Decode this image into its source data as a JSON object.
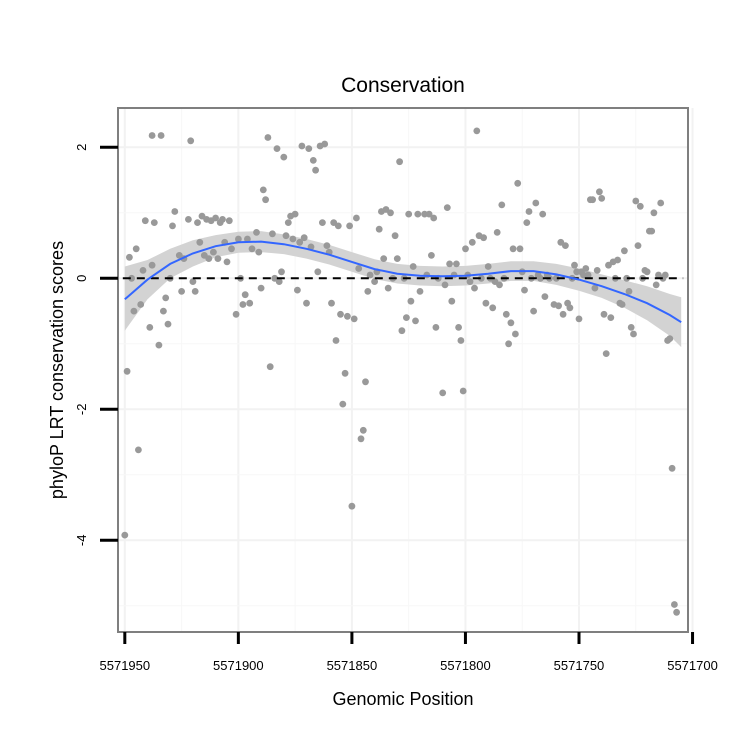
{
  "chart_data": {
    "type": "scatter",
    "title": "Conservation",
    "xlabel": "Genomic Position",
    "ylabel": "phyloP LRT conservation scores",
    "x_reversed": true,
    "xlim": [
      5571702,
      5571953
    ],
    "ylim": [
      -5.4,
      2.6
    ],
    "x_ticks": [
      5571950,
      5571900,
      5571850,
      5571800,
      5571750,
      5571700
    ],
    "x_tick_labels": [
      "5571950",
      "5571900",
      "5571850",
      "5571800",
      "5571750",
      "5571700"
    ],
    "y_ticks": [
      2,
      0,
      -2,
      -4
    ],
    "y_tick_labels": [
      "2",
      "0",
      "-2",
      "-4"
    ],
    "reference_line": {
      "y": 0,
      "style": "dashed"
    },
    "point_color": "#999999",
    "smooth_color": "#3366ff",
    "band_color": "#d3d3d3",
    "points": [
      [
        5571950,
        -3.92
      ],
      [
        5571949,
        -1.42
      ],
      [
        5571948,
        0.32
      ],
      [
        5571947,
        0.0
      ],
      [
        5571946,
        -0.5
      ],
      [
        5571945,
        0.45
      ],
      [
        5571944,
        -2.62
      ],
      [
        5571943,
        -0.4
      ],
      [
        5571942,
        0.12
      ],
      [
        5571941,
        0.88
      ],
      [
        5571939,
        -0.75
      ],
      [
        5571938,
        2.18
      ],
      [
        5571938,
        0.2
      ],
      [
        5571937,
        0.85
      ],
      [
        5571935,
        -1.02
      ],
      [
        5571934,
        2.18
      ],
      [
        5571933,
        -0.5
      ],
      [
        5571932,
        -0.3
      ],
      [
        5571931,
        -0.7
      ],
      [
        5571930,
        0.0
      ],
      [
        5571929,
        0.8
      ],
      [
        5571928,
        1.02
      ],
      [
        5571926,
        0.35
      ],
      [
        5571925,
        -0.2
      ],
      [
        5571924,
        0.3
      ],
      [
        5571922,
        0.9
      ],
      [
        5571921,
        2.1
      ],
      [
        5571920,
        -0.05
      ],
      [
        5571919,
        -0.2
      ],
      [
        5571918,
        0.85
      ],
      [
        5571917,
        0.55
      ],
      [
        5571916,
        0.95
      ],
      [
        5571915,
        0.35
      ],
      [
        5571914,
        0.9
      ],
      [
        5571913,
        0.3
      ],
      [
        5571912,
        0.88
      ],
      [
        5571911,
        0.4
      ],
      [
        5571910,
        0.92
      ],
      [
        5571909,
        0.3
      ],
      [
        5571908,
        0.85
      ],
      [
        5571907,
        0.9
      ],
      [
        5571906,
        0.55
      ],
      [
        5571905,
        0.25
      ],
      [
        5571904,
        0.88
      ],
      [
        5571903,
        0.45
      ],
      [
        5571901,
        -0.55
      ],
      [
        5571900,
        0.6
      ],
      [
        5571899,
        0.0
      ],
      [
        5571898,
        -0.4
      ],
      [
        5571897,
        -0.25
      ],
      [
        5571896,
        0.6
      ],
      [
        5571895,
        -0.38
      ],
      [
        5571894,
        0.45
      ],
      [
        5571892,
        0.7
      ],
      [
        5571891,
        0.4
      ],
      [
        5571890,
        -0.15
      ],
      [
        5571889,
        1.35
      ],
      [
        5571888,
        1.2
      ],
      [
        5571887,
        2.15
      ],
      [
        5571886,
        -1.35
      ],
      [
        5571885,
        0.68
      ],
      [
        5571884,
        0.0
      ],
      [
        5571883,
        1.98
      ],
      [
        5571882,
        -0.05
      ],
      [
        5571881,
        0.1
      ],
      [
        5571880,
        1.85
      ],
      [
        5571879,
        0.65
      ],
      [
        5571878,
        0.85
      ],
      [
        5571877,
        0.95
      ],
      [
        5571876,
        0.6
      ],
      [
        5571875,
        0.98
      ],
      [
        5571874,
        -0.18
      ],
      [
        5571873,
        0.55
      ],
      [
        5571872,
        2.02
      ],
      [
        5571871,
        0.62
      ],
      [
        5571870,
        -0.38
      ],
      [
        5571869,
        1.98
      ],
      [
        5571868,
        0.48
      ],
      [
        5571867,
        1.8
      ],
      [
        5571866,
        1.65
      ],
      [
        5571865,
        0.1
      ],
      [
        5571864,
        2.02
      ],
      [
        5571863,
        0.85
      ],
      [
        5571862,
        2.05
      ],
      [
        5571861,
        0.5
      ],
      [
        5571860,
        0.4
      ],
      [
        5571859,
        -0.38
      ],
      [
        5571858,
        0.85
      ],
      [
        5571857,
        -0.95
      ],
      [
        5571856,
        0.8
      ],
      [
        5571855,
        -0.55
      ],
      [
        5571854,
        -1.92
      ],
      [
        5571853,
        -1.45
      ],
      [
        5571852,
        -0.58
      ],
      [
        5571851,
        0.8
      ],
      [
        5571850,
        -3.48
      ],
      [
        5571849,
        -0.62
      ],
      [
        5571848,
        0.92
      ],
      [
        5571847,
        0.15
      ],
      [
        5571846,
        -2.45
      ],
      [
        5571845,
        -2.32
      ],
      [
        5571844,
        -1.58
      ],
      [
        5571843,
        -0.2
      ],
      [
        5571842,
        0.05
      ],
      [
        5571840,
        -0.05
      ],
      [
        5571839,
        0.1
      ],
      [
        5571838,
        0.75
      ],
      [
        5571837,
        1.02
      ],
      [
        5571836,
        0.3
      ],
      [
        5571835,
        1.05
      ],
      [
        5571834,
        -0.15
      ],
      [
        5571833,
        1.0
      ],
      [
        5571832,
        0.0
      ],
      [
        5571831,
        0.65
      ],
      [
        5571830,
        0.3
      ],
      [
        5571829,
        1.78
      ],
      [
        5571828,
        -0.8
      ],
      [
        5571827,
        0.0
      ],
      [
        5571826,
        -0.6
      ],
      [
        5571825,
        0.98
      ],
      [
        5571824,
        -0.35
      ],
      [
        5571823,
        0.18
      ],
      [
        5571822,
        -0.65
      ],
      [
        5571821,
        0.98
      ],
      [
        5571820,
        -0.2
      ],
      [
        5571818,
        0.98
      ],
      [
        5571817,
        0.05
      ],
      [
        5571816,
        0.98
      ],
      [
        5571815,
        0.35
      ],
      [
        5571814,
        0.92
      ],
      [
        5571813,
        -0.75
      ],
      [
        5571812,
        0.0
      ],
      [
        5571810,
        -1.75
      ],
      [
        5571809,
        -0.1
      ],
      [
        5571808,
        1.08
      ],
      [
        5571807,
        0.22
      ],
      [
        5571806,
        -0.35
      ],
      [
        5571805,
        0.05
      ],
      [
        5571804,
        0.22
      ],
      [
        5571803,
        -0.75
      ],
      [
        5571802,
        -0.95
      ],
      [
        5571801,
        -1.72
      ],
      [
        5571800,
        0.45
      ],
      [
        5571799,
        0.05
      ],
      [
        5571798,
        -0.05
      ],
      [
        5571797,
        0.55
      ],
      [
        5571796,
        -0.15
      ],
      [
        5571795,
        2.25
      ],
      [
        5571794,
        0.65
      ],
      [
        5571793,
        0.0
      ],
      [
        5571792,
        0.62
      ],
      [
        5571791,
        -0.38
      ],
      [
        5571790,
        0.18
      ],
      [
        5571789,
        0.0
      ],
      [
        5571788,
        -0.45
      ],
      [
        5571787,
        -0.05
      ],
      [
        5571786,
        0.7
      ],
      [
        5571785,
        -0.1
      ],
      [
        5571784,
        1.12
      ],
      [
        5571783,
        0.0
      ],
      [
        5571782,
        -0.55
      ],
      [
        5571781,
        -1.0
      ],
      [
        5571780,
        -0.68
      ],
      [
        5571779,
        0.45
      ],
      [
        5571778,
        -0.85
      ],
      [
        5571777,
        1.45
      ],
      [
        5571776,
        0.45
      ],
      [
        5571775,
        0.1
      ],
      [
        5571774,
        -0.18
      ],
      [
        5571773,
        0.85
      ],
      [
        5571772,
        1.02
      ],
      [
        5571771,
        0.0
      ],
      [
        5571770,
        -0.5
      ],
      [
        5571769,
        1.15
      ],
      [
        5571768,
        0.05
      ],
      [
        5571767,
        0.0
      ],
      [
        5571766,
        0.98
      ],
      [
        5571765,
        -0.28
      ],
      [
        5571764,
        0.05
      ],
      [
        5571763,
        0.0
      ],
      [
        5571761,
        -0.4
      ],
      [
        5571760,
        0.0
      ],
      [
        5571759,
        -0.42
      ],
      [
        5571758,
        0.55
      ],
      [
        5571757,
        -0.55
      ],
      [
        5571756,
        0.5
      ],
      [
        5571755,
        -0.38
      ],
      [
        5571754,
        -0.45
      ],
      [
        5571753,
        0.0
      ],
      [
        5571752,
        0.2
      ],
      [
        5571751,
        0.1
      ],
      [
        5571750,
        -0.62
      ],
      [
        5571749,
        0.1
      ],
      [
        5571748,
        0.05
      ],
      [
        5571747,
        0.15
      ],
      [
        5571746,
        0.05
      ],
      [
        5571745,
        1.2
      ],
      [
        5571744,
        1.2
      ],
      [
        5571743,
        -0.15
      ],
      [
        5571742,
        0.12
      ],
      [
        5571741,
        1.32
      ],
      [
        5571740,
        1.22
      ],
      [
        5571739,
        -0.55
      ],
      [
        5571738,
        -1.15
      ],
      [
        5571737,
        0.2
      ],
      [
        5571736,
        -0.6
      ],
      [
        5571735,
        0.25
      ],
      [
        5571734,
        0.0
      ],
      [
        5571733,
        0.28
      ],
      [
        5571732,
        -0.38
      ],
      [
        5571731,
        -0.4
      ],
      [
        5571730,
        0.42
      ],
      [
        5571729,
        0.0
      ],
      [
        5571728,
        -0.2
      ],
      [
        5571727,
        -0.75
      ],
      [
        5571726,
        -0.85
      ],
      [
        5571725,
        1.18
      ],
      [
        5571724,
        0.5
      ],
      [
        5571723,
        1.1
      ],
      [
        5571722,
        0.0
      ],
      [
        5571721,
        0.12
      ],
      [
        5571720,
        0.1
      ],
      [
        5571719,
        0.72
      ],
      [
        5571718,
        0.72
      ],
      [
        5571717,
        1.0
      ],
      [
        5571716,
        -0.1
      ],
      [
        5571715,
        0.05
      ],
      [
        5571714,
        1.15
      ],
      [
        5571713,
        0.0
      ],
      [
        5571712,
        0.05
      ],
      [
        5571711,
        -0.95
      ],
      [
        5571710,
        -0.92
      ],
      [
        5571709,
        -2.9
      ],
      [
        5571708,
        -4.98
      ],
      [
        5571707,
        -5.1
      ]
    ],
    "smooth": [
      {
        "x": 5571950,
        "y": -0.32,
        "lo": -0.8,
        "hi": 0.18
      },
      {
        "x": 5571940,
        "y": -0.02,
        "lo": -0.32,
        "hi": 0.28
      },
      {
        "x": 5571930,
        "y": 0.22,
        "lo": 0.0,
        "hi": 0.45
      },
      {
        "x": 5571920,
        "y": 0.38,
        "lo": 0.18,
        "hi": 0.58
      },
      {
        "x": 5571910,
        "y": 0.49,
        "lo": 0.32,
        "hi": 0.66
      },
      {
        "x": 5571900,
        "y": 0.55,
        "lo": 0.39,
        "hi": 0.71
      },
      {
        "x": 5571890,
        "y": 0.56,
        "lo": 0.4,
        "hi": 0.72
      },
      {
        "x": 5571880,
        "y": 0.52,
        "lo": 0.37,
        "hi": 0.67
      },
      {
        "x": 5571870,
        "y": 0.45,
        "lo": 0.3,
        "hi": 0.6
      },
      {
        "x": 5571860,
        "y": 0.36,
        "lo": 0.21,
        "hi": 0.51
      },
      {
        "x": 5571850,
        "y": 0.25,
        "lo": 0.1,
        "hi": 0.4
      },
      {
        "x": 5571840,
        "y": 0.14,
        "lo": -0.01,
        "hi": 0.29
      },
      {
        "x": 5571830,
        "y": 0.07,
        "lo": -0.08,
        "hi": 0.22
      },
      {
        "x": 5571820,
        "y": 0.04,
        "lo": -0.11,
        "hi": 0.19
      },
      {
        "x": 5571810,
        "y": 0.03,
        "lo": -0.12,
        "hi": 0.18
      },
      {
        "x": 5571800,
        "y": 0.04,
        "lo": -0.11,
        "hi": 0.19
      },
      {
        "x": 5571790,
        "y": 0.07,
        "lo": -0.08,
        "hi": 0.22
      },
      {
        "x": 5571780,
        "y": 0.11,
        "lo": -0.04,
        "hi": 0.26
      },
      {
        "x": 5571770,
        "y": 0.11,
        "lo": -0.04,
        "hi": 0.26
      },
      {
        "x": 5571760,
        "y": 0.06,
        "lo": -0.1,
        "hi": 0.22
      },
      {
        "x": 5571750,
        "y": -0.02,
        "lo": -0.19,
        "hi": 0.15
      },
      {
        "x": 5571740,
        "y": -0.12,
        "lo": -0.3,
        "hi": 0.06
      },
      {
        "x": 5571730,
        "y": -0.24,
        "lo": -0.45,
        "hi": -0.03
      },
      {
        "x": 5571720,
        "y": -0.38,
        "lo": -0.64,
        "hi": -0.12
      },
      {
        "x": 5571710,
        "y": -0.56,
        "lo": -0.88,
        "hi": -0.24
      },
      {
        "x": 5571705,
        "y": -0.67,
        "lo": -1.05,
        "hi": -0.29
      }
    ]
  }
}
